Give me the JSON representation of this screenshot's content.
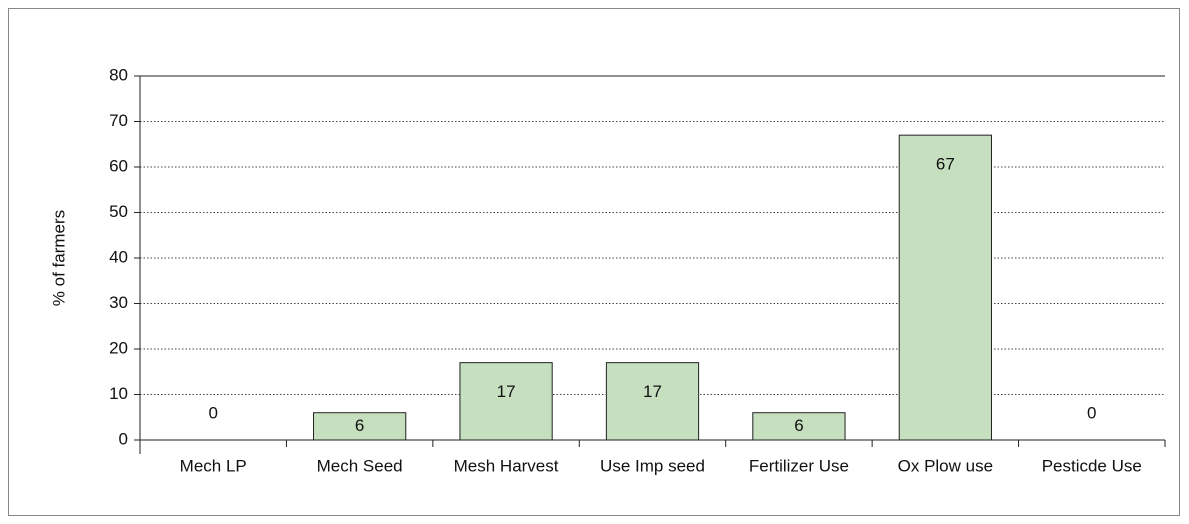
{
  "chart_data": {
    "type": "bar",
    "y_label": "% of farmers",
    "categories": [
      "Mech LP",
      "Mech Seed",
      "Mesh Harvest",
      "Use Imp seed",
      "Fertilizer Use",
      "Ox Plow use",
      "Pesticde Use"
    ],
    "values": [
      0,
      6,
      17,
      17,
      6,
      67,
      0
    ],
    "color": "#c5dfbf",
    "ylim": [
      0,
      80
    ],
    "yticks": [
      0,
      10,
      20,
      30,
      40,
      50,
      60,
      70,
      80
    ],
    "grid": true
  }
}
